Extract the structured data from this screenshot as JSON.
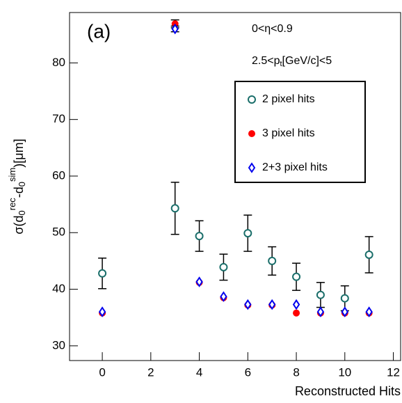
{
  "chart_data": {
    "type": "scatter",
    "title": "(a)",
    "annotations": [
      "0<η<0.9"
    ],
    "pt_annotation": [
      "2.5<p",
      "t",
      "[GeV/c]<5"
    ],
    "x_label": "Reconstructed Hits",
    "y_label": [
      "σ(d",
      "0",
      "rec",
      "-d",
      "0",
      "sim",
      ")[μm]"
    ],
    "x": [
      0,
      3,
      4,
      5,
      6,
      7,
      8,
      9,
      10,
      11
    ],
    "series": [
      {
        "name": "2 pixel hits",
        "color": "#1a6e6a",
        "marker": "open-circle",
        "values": [
          42.8,
          54.3,
          49.4,
          43.9,
          49.9,
          45.0,
          42.2,
          39.0,
          38.4,
          46.1
        ],
        "errors": [
          2.7,
          4.6,
          2.7,
          2.3,
          3.2,
          2.5,
          2.4,
          2.2,
          2.2,
          3.2
        ]
      },
      {
        "name": "3 pixel hits",
        "color": "#ff0000",
        "marker": "filled-circle",
        "values": [
          35.8,
          86.9,
          41.2,
          38.5,
          37.2,
          37.2,
          35.8,
          35.8,
          35.8,
          35.8
        ],
        "errors": [
          null,
          0.7,
          null,
          null,
          null,
          null,
          null,
          null,
          null,
          null
        ]
      },
      {
        "name": "2+3 pixel hits",
        "color": "#0000ee",
        "marker": "open-diamond",
        "values": [
          36.0,
          86.0,
          41.3,
          38.7,
          37.3,
          37.3,
          37.3,
          36.0,
          36.0,
          36.0
        ],
        "errors": [
          null,
          0.5,
          null,
          null,
          null,
          null,
          null,
          null,
          null,
          null
        ]
      }
    ],
    "xlim": [
      -1.35,
      12.3
    ],
    "xticks": [
      0,
      2,
      4,
      6,
      8,
      10,
      12
    ],
    "ylim": [
      27.4,
      88.9
    ],
    "yticks": [
      30,
      40,
      50,
      60,
      70,
      80
    ],
    "grid": false
  }
}
